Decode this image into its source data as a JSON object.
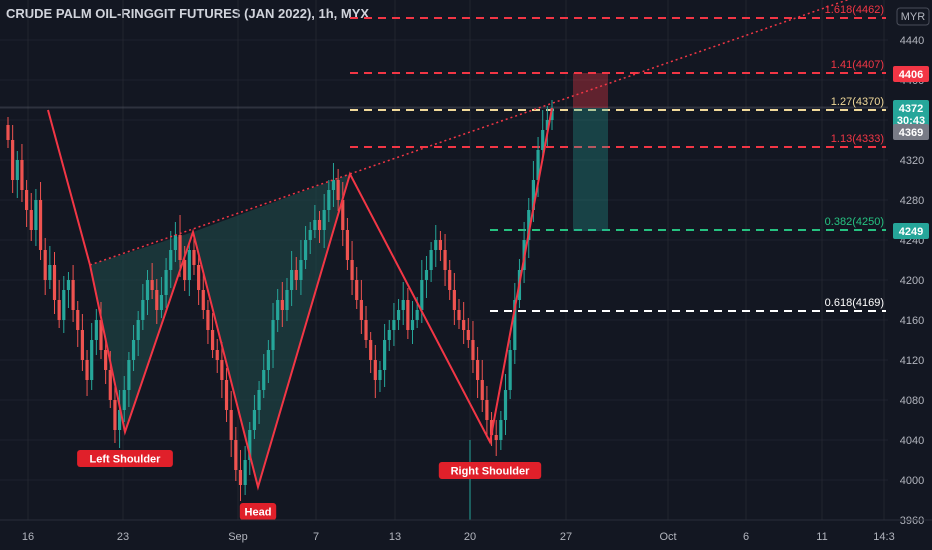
{
  "title": "CRUDE PALM OIL-RINGGIT FUTURES (JAN 2022), 1h, MYX",
  "currency_label": "MYR",
  "colors": {
    "background": "#131722",
    "up": "#26a69a",
    "down": "#ef5350",
    "pattern_line": "#f23645",
    "pattern_fill": "#1f4a4a",
    "trend_dotted": "#f23645",
    "grid": "#2a2e39"
  },
  "chart_data": {
    "type": "candlestick",
    "title": "CRUDE PALM OIL-RINGGIT FUTURES (JAN 2022), 1h, MYX",
    "ylim": [
      3960,
      4480
    ],
    "y_ticks": [
      3960,
      4000,
      4040,
      4080,
      4120,
      4160,
      4200,
      4240,
      4280,
      4320,
      4360,
      4400,
      4440
    ],
    "x_ticks": [
      "16",
      "23",
      "Sep",
      "7",
      "13",
      "20",
      "27",
      "Oct",
      "6",
      "11",
      "14:3"
    ],
    "pattern": {
      "name": "Head and Shoulders (inverse)",
      "points": [
        {
          "label": "",
          "value": 4370
        },
        {
          "label": "",
          "value": 4215
        },
        {
          "label": "Left Shoulder",
          "value": 4048
        },
        {
          "label": "",
          "value": 4248
        },
        {
          "label": "Head",
          "value": 3993
        },
        {
          "label": "",
          "value": 4306
        },
        {
          "label": "Right Shoulder",
          "value": 4038
        },
        {
          "label": "",
          "value": 4372
        }
      ]
    },
    "labels": [
      "Left Shoulder",
      "Head",
      "Right Shoulder"
    ],
    "fib_levels": [
      {
        "label": "1.618(4462)",
        "value": 4462,
        "color": "#f23645"
      },
      {
        "label": "1.41(4407)",
        "value": 4407,
        "color": "#f23645"
      },
      {
        "label": "1.27(4370)",
        "value": 4370,
        "color": "#f0d99a"
      },
      {
        "label": "1.13(4333)",
        "value": 4333,
        "color": "#f23645"
      },
      {
        "label": "0.382(4250)",
        "value": 4250,
        "color": "#26c281"
      },
      {
        "label": "0.618(4169)",
        "value": 4169,
        "color": "#ffffff"
      }
    ],
    "price_tags": [
      {
        "text": "4406",
        "value": 4406,
        "bg": "#f23645",
        "fg": "#ffffff"
      },
      {
        "text": "4372",
        "value": 4372,
        "bg": "#26a69a",
        "fg": "#ffffff",
        "sub": "30:43"
      },
      {
        "text": "4369",
        "value": 4369,
        "bg": "#787b86",
        "fg": "#ffffff"
      },
      {
        "text": "4249",
        "value": 4249,
        "bg": "#26a69a",
        "fg": "#ffffff"
      }
    ],
    "position_box": {
      "entry": 4372,
      "stop": 4407,
      "target": 4249
    },
    "candles_approx": [
      4340,
      4300,
      4320,
      4290,
      4270,
      4250,
      4280,
      4230,
      4200,
      4215,
      4180,
      4160,
      4190,
      4200,
      4170,
      4150,
      4120,
      4100,
      4140,
      4160,
      4130,
      4110,
      4080,
      4050,
      4070,
      4090,
      4120,
      4140,
      4160,
      4180,
      4200,
      4190,
      4170,
      4185,
      4210,
      4230,
      4245,
      4220,
      4200,
      4230,
      4215,
      4190,
      4170,
      4150,
      4130,
      4120,
      4100,
      4070,
      4040,
      4010,
      3995,
      4020,
      4050,
      4070,
      4090,
      4110,
      4130,
      4160,
      4180,
      4170,
      4190,
      4210,
      4200,
      4220,
      4240,
      4250,
      4260,
      4250,
      4270,
      4290,
      4300,
      4280,
      4250,
      4220,
      4200,
      4180,
      4160,
      4140,
      4120,
      4100,
      4110,
      4140,
      4150,
      4160,
      4170,
      4180,
      4150,
      4160,
      4170,
      4200,
      4210,
      4230,
      4240,
      4230,
      4210,
      4190,
      4170,
      4160,
      4150,
      4140,
      4120,
      4100,
      4080,
      4060,
      4045,
      4040,
      4060,
      4090,
      4130,
      4180,
      4210,
      4240,
      4270,
      4300,
      4330,
      4350,
      4360,
      4372
    ]
  }
}
